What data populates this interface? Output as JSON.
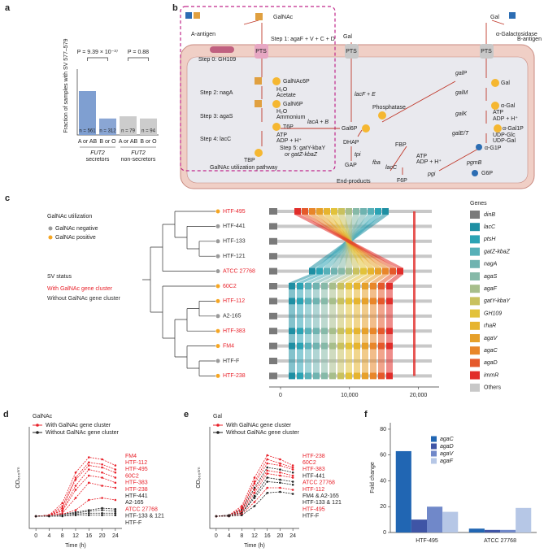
{
  "chart_data": [
    {
      "type": "bar",
      "label": "a",
      "ylabel": "Fraction of samples with SV 577–579",
      "categories": [
        "A or AB",
        "B or O",
        "A or AB",
        "B or O"
      ],
      "values": [
        0.4,
        0.15,
        0.17,
        0.15
      ],
      "colors": [
        "#7f9fd1",
        "#8aa6d4",
        "#cccccc",
        "#cccccc"
      ],
      "annotations": [
        "n = 561",
        "n = 312",
        "n = 79",
        "n = 94"
      ],
      "comparisons": [
        "P = 9.39 × 10⁻³⁷",
        "P = 0.88"
      ],
      "groups": [
        {
          "name": "FUT2",
          "sub": "secretors"
        },
        {
          "name": "FUT2",
          "sub": "non-secretors"
        }
      ],
      "ylim": [
        0,
        0.6
      ]
    },
    {
      "type": "line",
      "label": "d",
      "title": "GalNAc",
      "xlabel": "Time (h)",
      "ylabel": "OD₆₀₀ₙₘ",
      "legend": [
        {
          "name": "With GalNAc gene cluster",
          "color": "#e8212a"
        },
        {
          "name": "Without GalNAc gene cluster",
          "color": "#222222"
        }
      ],
      "x": [
        0,
        4,
        8,
        12,
        16,
        20,
        24
      ],
      "xlim": [
        -2,
        26
      ],
      "xticks": [
        0,
        4,
        8,
        12,
        16,
        20,
        24
      ],
      "ylim": [
        0,
        1
      ],
      "series": [
        {
          "name": "FM4",
          "color": "#e8212a",
          "values": [
            0.12,
            0.13,
            0.25,
            0.55,
            0.7,
            0.68,
            0.62
          ]
        },
        {
          "name": "HTF-112",
          "color": "#e8212a",
          "values": [
            0.12,
            0.13,
            0.22,
            0.5,
            0.65,
            0.63,
            0.58
          ]
        },
        {
          "name": "HTF-495",
          "color": "#e8212a",
          "values": [
            0.12,
            0.13,
            0.2,
            0.48,
            0.62,
            0.6,
            0.55
          ]
        },
        {
          "name": "60C2",
          "color": "#e8212a",
          "values": [
            0.12,
            0.13,
            0.18,
            0.42,
            0.58,
            0.55,
            0.5
          ]
        },
        {
          "name": "HTF-383",
          "color": "#e8212a",
          "values": [
            0.12,
            0.13,
            0.17,
            0.38,
            0.52,
            0.5,
            0.45
          ]
        },
        {
          "name": "HTF-238",
          "color": "#e8212a",
          "values": [
            0.12,
            0.13,
            0.15,
            0.3,
            0.45,
            0.42,
            0.4
          ]
        },
        {
          "name": "HTF-441",
          "color": "#222222",
          "values": [
            0.12,
            0.13,
            0.14,
            0.16,
            0.18,
            0.2,
            0.19
          ]
        },
        {
          "name": "A2-165",
          "color": "#222222",
          "values": [
            0.12,
            0.13,
            0.14,
            0.15,
            0.17,
            0.18,
            0.17
          ]
        },
        {
          "name": "ATCC 27768",
          "color": "#e8212a",
          "values": [
            0.12,
            0.13,
            0.14,
            0.18,
            0.28,
            0.3,
            0.28
          ]
        },
        {
          "name": "HTF-133 & 121",
          "color": "#222222",
          "values": [
            0.12,
            0.12,
            0.13,
            0.14,
            0.15,
            0.15,
            0.15
          ]
        },
        {
          "name": "HTF-F",
          "color": "#222222",
          "values": [
            0.12,
            0.12,
            0.12,
            0.13,
            0.13,
            0.13,
            0.13
          ]
        }
      ]
    },
    {
      "type": "line",
      "label": "e",
      "title": "Gal",
      "xlabel": "Time (h)",
      "ylabel": "OD₆₀₀ₙₘ",
      "legend": [
        {
          "name": "With GalNAc gene cluster",
          "color": "#e8212a"
        },
        {
          "name": "Without GalNAc gene cluster",
          "color": "#222222"
        }
      ],
      "x": [
        0,
        4,
        8,
        12,
        16,
        20,
        24
      ],
      "xlim": [
        -2,
        26
      ],
      "xticks": [
        0,
        4,
        8,
        12,
        16,
        20,
        24
      ],
      "ylim": [
        0,
        1
      ],
      "series": [
        {
          "name": "HTF-238",
          "color": "#e8212a",
          "values": [
            0.12,
            0.13,
            0.22,
            0.5,
            0.72,
            0.68,
            0.62
          ]
        },
        {
          "name": "60C2",
          "color": "#e8212a",
          "values": [
            0.12,
            0.13,
            0.2,
            0.46,
            0.68,
            0.64,
            0.6
          ]
        },
        {
          "name": "HTF-383",
          "color": "#e8212a",
          "values": [
            0.12,
            0.13,
            0.19,
            0.44,
            0.64,
            0.62,
            0.58
          ]
        },
        {
          "name": "HTF-441",
          "color": "#222222",
          "values": [
            0.12,
            0.13,
            0.18,
            0.4,
            0.6,
            0.58,
            0.55
          ]
        },
        {
          "name": "ATCC 27768",
          "color": "#e8212a",
          "values": [
            0.12,
            0.13,
            0.17,
            0.38,
            0.57,
            0.55,
            0.52
          ]
        },
        {
          "name": "HTF-112",
          "color": "#e8212a",
          "values": [
            0.12,
            0.13,
            0.16,
            0.35,
            0.54,
            0.52,
            0.5
          ]
        },
        {
          "name": "FM4 & A2-165",
          "color": "#222222",
          "values": [
            0.12,
            0.13,
            0.15,
            0.32,
            0.5,
            0.48,
            0.46
          ]
        },
        {
          "name": "HTF-133 & 121",
          "color": "#222222",
          "values": [
            0.12,
            0.13,
            0.15,
            0.3,
            0.46,
            0.45,
            0.43
          ]
        },
        {
          "name": "HTF-495",
          "color": "#e8212a",
          "values": [
            0.12,
            0.12,
            0.14,
            0.26,
            0.4,
            0.4,
            0.38
          ]
        },
        {
          "name": "HTF-F",
          "color": "#222222",
          "values": [
            0.12,
            0.12,
            0.13,
            0.22,
            0.35,
            0.36,
            0.34
          ]
        }
      ]
    },
    {
      "type": "grouped_bar",
      "label": "f",
      "ylabel": "Fold change",
      "categories": [
        "HTF-495",
        "ATCC 27768"
      ],
      "series": [
        {
          "name": "agaC",
          "color": "#2166b3",
          "values": [
            63,
            3
          ]
        },
        {
          "name": "agaD",
          "color": "#3f55a6",
          "values": [
            10,
            2
          ]
        },
        {
          "name": "agaV",
          "color": "#7088c9",
          "values": [
            20,
            2
          ]
        },
        {
          "name": "agaF",
          "color": "#b6c7e6",
          "values": [
            16,
            19
          ]
        }
      ],
      "ylim": [
        0,
        85
      ],
      "yticks": [
        0,
        20,
        40,
        60,
        80
      ]
    }
  ],
  "pathway": {
    "texts": [
      "b",
      "A-antigen",
      "GalNAc",
      "Step 0: GH109",
      "Step 1: agaF + V + C + D",
      "PTS",
      "Gal",
      "PTS",
      "Gal",
      "α-Galactosidase",
      "B-antigen",
      "PTS",
      "GalNAc6P",
      "Step 2: nagA",
      "H₂O",
      "Acetate",
      "GalN6P",
      "Step 3: agaS",
      "H₂O",
      "Ammonium",
      "T6P",
      "Step 4: lacC",
      "ATP",
      "ADP + H⁺",
      "TBP",
      "GalNAc utilization pathway",
      "lacF + E",
      "lacA + B",
      "Gal6P",
      "Phosphatase",
      "DHAP",
      "Step 5: gatY-kbaY",
      "or gatZ-kbaZ",
      "tpi",
      "GAP",
      "End-products",
      "fba",
      "FBP",
      "lacC",
      "ATP",
      "ADP + H⁺",
      "F6P",
      "pgi",
      "G6P",
      "galP",
      "Gal",
      "galM",
      "α-Gal",
      "galK",
      "ATP",
      "ADP + H⁺",
      "α-Gal1P",
      "galE/T",
      "UDP-Glc",
      "UDP-Gal",
      "α-G1P",
      "pgmB"
    ]
  },
  "tree": {
    "label": "c",
    "utilization_title": "GalNAc utilization",
    "negative": "GalNAc negative",
    "positive": "GalNAc positive",
    "negative_color": "#9a9a9a",
    "positive_color": "#f5a623",
    "sv_title": "SV status",
    "with_cluster": "With GalNAc gene cluster",
    "without_cluster": "Without GalNAc gene cluster",
    "cluster_color": "#e8212a",
    "no_cluster_color": "#333333",
    "strains": [
      {
        "name": "HTF-495",
        "cluster": true,
        "positive": true
      },
      {
        "name": "HTF-441",
        "cluster": false,
        "positive": false
      },
      {
        "name": "HTF-133",
        "cluster": false,
        "positive": false
      },
      {
        "name": "HTF-121",
        "cluster": false,
        "positive": false
      },
      {
        "name": "ATCC 27768",
        "cluster": true,
        "positive": false
      },
      {
        "name": "60C2",
        "cluster": true,
        "positive": true
      },
      {
        "name": "HTF-112",
        "cluster": true,
        "positive": true
      },
      {
        "name": "A2-165",
        "cluster": false,
        "positive": false
      },
      {
        "name": "HTF-383",
        "cluster": true,
        "positive": true
      },
      {
        "name": "FM4",
        "cluster": true,
        "positive": true
      },
      {
        "name": "HTF-F",
        "cluster": false,
        "positive": false
      },
      {
        "name": "HTF-238",
        "cluster": true,
        "positive": true
      }
    ],
    "genes_title": "Genes",
    "genes": [
      {
        "name": "dinB",
        "color": "#7a7a7a"
      },
      {
        "name": "lacC",
        "color": "#1e8fa3"
      },
      {
        "name": "ptsH",
        "color": "#2ba3b4"
      },
      {
        "name": "gatZ-kbaZ",
        "color": "#56b0b8"
      },
      {
        "name": "nagA",
        "color": "#6fb3b0"
      },
      {
        "name": "agaS",
        "color": "#86b9a8"
      },
      {
        "name": "agaF",
        "color": "#a7be8b"
      },
      {
        "name": "gatY-kbaY",
        "color": "#c9c15e"
      },
      {
        "name": "GH109",
        "color": "#e2c23a"
      },
      {
        "name": "rhaR",
        "color": "#e6b42f"
      },
      {
        "name": "agaV",
        "color": "#e6a02a"
      },
      {
        "name": "agaC",
        "color": "#e8862a"
      },
      {
        "name": "agaD",
        "color": "#e5592b"
      },
      {
        "name": "immR",
        "color": "#e12d2a"
      },
      {
        "name": "Others",
        "color": "#c8c8c8"
      }
    ],
    "xlim": [
      0,
      23000
    ],
    "xticks": [
      0,
      {
        "value": 10000,
        "label": "10,000"
      },
      {
        "value": 20000,
        "label": "20,000"
      }
    ]
  }
}
